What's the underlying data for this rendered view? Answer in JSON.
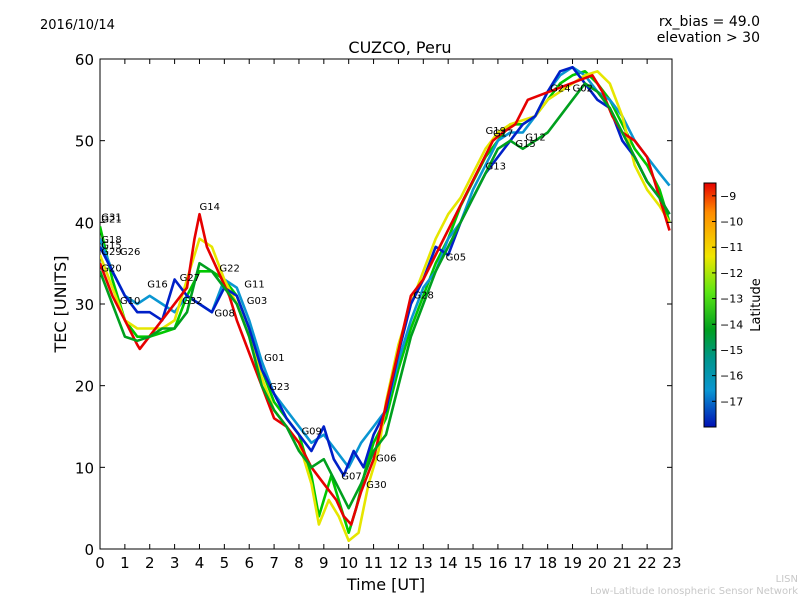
{
  "header": {
    "date": "2016/10/14",
    "bias_line1": "rx_bias = 49.0",
    "bias_line2": "elevation > 30"
  },
  "credit": {
    "line1": "LISN",
    "line2": "Low-Latitude Ionospheric Sensor Network"
  },
  "chart_data": {
    "type": "line",
    "title": "CUZCO, Peru",
    "xlabel": "Time [UT]",
    "ylabel": "TEC [UNITS]",
    "xlim": [
      0,
      23
    ],
    "ylim": [
      0,
      60
    ],
    "xticks": [
      0,
      1,
      2,
      3,
      4,
      5,
      6,
      7,
      8,
      9,
      10,
      11,
      12,
      13,
      14,
      15,
      16,
      17,
      18,
      19,
      20,
      21,
      22,
      23
    ],
    "yticks": [
      0,
      10,
      20,
      30,
      40,
      50,
      60
    ],
    "colorbar": {
      "label": "Latitude",
      "ticks": [
        -9,
        -10,
        -11,
        -12,
        -13,
        -14,
        -15,
        -16,
        -17
      ],
      "range": [
        -18,
        -8.5
      ]
    },
    "satellite_labels": [
      {
        "name": "G31",
        "x": 0.05,
        "y": 40.2
      },
      {
        "name": "G21",
        "x": 0.05,
        "y": 40.0
      },
      {
        "name": "G18",
        "x": 0.05,
        "y": 37.5
      },
      {
        "name": "G15",
        "x": 0.05,
        "y": 36.8
      },
      {
        "name": "G29",
        "x": 0.05,
        "y": 36.0
      },
      {
        "name": "G26",
        "x": 0.8,
        "y": 36.0
      },
      {
        "name": "G20",
        "x": 0.05,
        "y": 34.0
      },
      {
        "name": "G16",
        "x": 1.9,
        "y": 32.0
      },
      {
        "name": "G10",
        "x": 0.8,
        "y": 30.0
      },
      {
        "name": "G14",
        "x": 4.0,
        "y": 41.5
      },
      {
        "name": "G27",
        "x": 3.2,
        "y": 32.8
      },
      {
        "name": "G32",
        "x": 3.3,
        "y": 30.0
      },
      {
        "name": "G22",
        "x": 4.8,
        "y": 34.0
      },
      {
        "name": "G08",
        "x": 4.6,
        "y": 28.5
      },
      {
        "name": "G11",
        "x": 5.8,
        "y": 32.0
      },
      {
        "name": "G03",
        "x": 5.9,
        "y": 30.0
      },
      {
        "name": "G01",
        "x": 6.6,
        "y": 23.0
      },
      {
        "name": "G23",
        "x": 6.8,
        "y": 19.5
      },
      {
        "name": "G09",
        "x": 8.1,
        "y": 14.0
      },
      {
        "name": "G07",
        "x": 9.7,
        "y": 8.5
      },
      {
        "name": "G30",
        "x": 10.7,
        "y": 7.5
      },
      {
        "name": "G06",
        "x": 11.1,
        "y": 10.7
      },
      {
        "name": "G28",
        "x": 12.6,
        "y": 30.7
      },
      {
        "name": "G05",
        "x": 13.9,
        "y": 35.3
      },
      {
        "name": "G13",
        "x": 15.5,
        "y": 46.5
      },
      {
        "name": "G19",
        "x": 15.5,
        "y": 50.8
      },
      {
        "name": "G17",
        "x": 15.8,
        "y": 50.5
      },
      {
        "name": "G15",
        "x": 16.7,
        "y": 49.2
      },
      {
        "name": "G12",
        "x": 17.1,
        "y": 50.0
      },
      {
        "name": "G24",
        "x": 18.1,
        "y": 56.0
      },
      {
        "name": "G02",
        "x": 19.0,
        "y": 56.0
      }
    ],
    "series": [
      {
        "color": "#00c800",
        "points": [
          [
            0,
            39.5
          ],
          [
            0.5,
            33
          ],
          [
            1,
            28
          ],
          [
            1.5,
            26
          ],
          [
            2,
            26
          ],
          [
            2.5,
            26.5
          ],
          [
            3,
            27
          ],
          [
            3.5,
            31
          ],
          [
            4,
            34
          ],
          [
            4.5,
            34
          ],
          [
            5,
            33
          ],
          [
            5.5,
            31
          ],
          [
            6,
            27
          ],
          [
            6.5,
            22
          ],
          [
            7,
            18
          ],
          [
            7.5,
            16
          ],
          [
            8,
            14
          ],
          [
            8.5,
            9
          ],
          [
            8.8,
            4
          ],
          [
            9,
            6
          ],
          [
            9.3,
            9
          ],
          [
            9.7,
            5
          ],
          [
            10,
            2
          ],
          [
            10.3,
            5
          ],
          [
            10.7,
            10
          ],
          [
            11,
            13
          ],
          [
            11.5,
            16
          ],
          [
            12,
            22
          ],
          [
            12.5,
            27
          ],
          [
            13,
            31
          ],
          [
            13.5,
            35
          ],
          [
            14,
            38
          ],
          [
            14.5,
            42
          ],
          [
            15,
            45
          ],
          [
            15.5,
            48
          ],
          [
            16,
            50
          ],
          [
            16.5,
            52
          ],
          [
            17,
            52
          ],
          [
            17.5,
            53
          ],
          [
            18,
            55
          ],
          [
            18.5,
            57
          ],
          [
            19,
            58
          ],
          [
            19.5,
            58.5
          ],
          [
            20,
            57
          ],
          [
            20.5,
            55
          ],
          [
            21,
            52
          ],
          [
            21.5,
            49
          ],
          [
            22,
            47
          ],
          [
            22.5,
            44
          ],
          [
            22.9,
            40
          ]
        ]
      },
      {
        "color": "#0a96d2",
        "points": [
          [
            0,
            38
          ],
          [
            0.5,
            34
          ],
          [
            1,
            31
          ],
          [
            1.5,
            30
          ],
          [
            2,
            31
          ],
          [
            2.5,
            30
          ],
          [
            3,
            29
          ],
          [
            3.5,
            31
          ],
          [
            4,
            30
          ],
          [
            4.5,
            29
          ],
          [
            5,
            33
          ],
          [
            5.5,
            32
          ],
          [
            6,
            28
          ],
          [
            6.5,
            23
          ],
          [
            7,
            19
          ],
          [
            7.5,
            17
          ],
          [
            8,
            15
          ],
          [
            8.5,
            13
          ],
          [
            9,
            14
          ],
          [
            9.5,
            12
          ],
          [
            10,
            10
          ],
          [
            10.5,
            13
          ],
          [
            11,
            15
          ],
          [
            11.5,
            17
          ],
          [
            12,
            23
          ],
          [
            12.5,
            28
          ],
          [
            13,
            32
          ],
          [
            13.5,
            34
          ],
          [
            14,
            38
          ],
          [
            14.5,
            40
          ],
          [
            15,
            44
          ],
          [
            15.5,
            47
          ],
          [
            16,
            50
          ],
          [
            16.5,
            51
          ],
          [
            17,
            51
          ],
          [
            17.5,
            53
          ],
          [
            18,
            56
          ],
          [
            18.5,
            58
          ],
          [
            19,
            59
          ],
          [
            19.5,
            58
          ],
          [
            20,
            56
          ],
          [
            20.5,
            55
          ],
          [
            21,
            53
          ],
          [
            21.5,
            50
          ],
          [
            22,
            48
          ],
          [
            22.5,
            46
          ],
          [
            22.9,
            44.5
          ]
        ]
      },
      {
        "color": "#e6e600",
        "points": [
          [
            0,
            36
          ],
          [
            0.5,
            32
          ],
          [
            1,
            28
          ],
          [
            1.5,
            27
          ],
          [
            2,
            27
          ],
          [
            2.5,
            27
          ],
          [
            3,
            28
          ],
          [
            3.5,
            33
          ],
          [
            4,
            38
          ],
          [
            4.5,
            37
          ],
          [
            5,
            33
          ],
          [
            5.5,
            30
          ],
          [
            6,
            26
          ],
          [
            6.5,
            21
          ],
          [
            7,
            17
          ],
          [
            7.5,
            15
          ],
          [
            8,
            13
          ],
          [
            8.5,
            8
          ],
          [
            8.8,
            3
          ],
          [
            9.2,
            6
          ],
          [
            9.6,
            4
          ],
          [
            10,
            1
          ],
          [
            10.4,
            2
          ],
          [
            10.8,
            8
          ],
          [
            11.2,
            12
          ],
          [
            11.5,
            18
          ],
          [
            12,
            25
          ],
          [
            12.5,
            30
          ],
          [
            13,
            34
          ],
          [
            13.5,
            38
          ],
          [
            14,
            41
          ],
          [
            14.5,
            43
          ],
          [
            15,
            46
          ],
          [
            15.5,
            49
          ],
          [
            16,
            51
          ],
          [
            16.5,
            52
          ],
          [
            17,
            52.5
          ],
          [
            17.5,
            53
          ],
          [
            18,
            55
          ],
          [
            18.5,
            56
          ],
          [
            19,
            57
          ],
          [
            19.5,
            58
          ],
          [
            20,
            58.5
          ],
          [
            20.5,
            57
          ],
          [
            21,
            53
          ],
          [
            21.5,
            47
          ],
          [
            22,
            44
          ],
          [
            22.5,
            42
          ],
          [
            22.9,
            40
          ]
        ]
      },
      {
        "color": "#0020c8",
        "points": [
          [
            0,
            37
          ],
          [
            0.5,
            34
          ],
          [
            1,
            31
          ],
          [
            1.5,
            29
          ],
          [
            2,
            29
          ],
          [
            2.5,
            28
          ],
          [
            3,
            33
          ],
          [
            3.5,
            31
          ],
          [
            4,
            30
          ],
          [
            4.5,
            29
          ],
          [
            5,
            32
          ],
          [
            5.5,
            31
          ],
          [
            6,
            27
          ],
          [
            6.5,
            22
          ],
          [
            7,
            19
          ],
          [
            7.5,
            16
          ],
          [
            8,
            14
          ],
          [
            8.5,
            12
          ],
          [
            9,
            15
          ],
          [
            9.4,
            11
          ],
          [
            9.8,
            9
          ],
          [
            10.2,
            12
          ],
          [
            10.6,
            10
          ],
          [
            11,
            14
          ],
          [
            11.5,
            17
          ],
          [
            12,
            24
          ],
          [
            12.5,
            30
          ],
          [
            13,
            33
          ],
          [
            13.5,
            37
          ],
          [
            14,
            36
          ],
          [
            14.5,
            40
          ],
          [
            15,
            43
          ],
          [
            15.5,
            46
          ],
          [
            16,
            48
          ],
          [
            16.5,
            50
          ],
          [
            17,
            52
          ],
          [
            17.5,
            53
          ],
          [
            18,
            56
          ],
          [
            18.5,
            58.5
          ],
          [
            19,
            59
          ],
          [
            19.5,
            57
          ],
          [
            20,
            55
          ],
          [
            20.5,
            54
          ],
          [
            21,
            50
          ],
          [
            21.5,
            48
          ],
          [
            22,
            45
          ],
          [
            22.5,
            43
          ],
          [
            22.9,
            41
          ]
        ]
      },
      {
        "color": "#e60000",
        "points": [
          [
            0,
            35
          ],
          [
            0.5,
            31
          ],
          [
            1,
            28
          ],
          [
            1.5,
            25
          ],
          [
            1.6,
            24.5
          ],
          [
            3.5,
            32
          ],
          [
            3.8,
            38
          ],
          [
            4,
            41
          ],
          [
            4.3,
            37
          ],
          [
            4.6,
            35
          ],
          [
            5.2,
            31
          ],
          [
            5.5,
            28
          ],
          [
            6,
            24
          ],
          [
            6.5,
            20
          ],
          [
            7,
            16
          ],
          [
            7.5,
            15
          ],
          [
            8,
            13
          ],
          [
            8.5,
            10
          ],
          [
            9,
            8
          ],
          [
            9.5,
            6
          ],
          [
            9.8,
            4
          ],
          [
            10.1,
            3
          ],
          [
            10.5,
            7
          ],
          [
            11,
            11
          ],
          [
            12.5,
            31
          ],
          [
            13,
            33
          ],
          [
            15.8,
            50
          ],
          [
            16.2,
            51
          ],
          [
            16.7,
            52
          ],
          [
            17.2,
            55
          ],
          [
            19.8,
            58
          ],
          [
            20.2,
            56
          ],
          [
            20.6,
            53
          ],
          [
            21,
            51
          ],
          [
            21.5,
            50
          ],
          [
            22,
            48
          ],
          [
            22.5,
            43
          ],
          [
            22.9,
            39
          ]
        ]
      },
      {
        "color": "#00a01e",
        "points": [
          [
            0,
            34
          ],
          [
            0.5,
            30
          ],
          [
            1,
            26
          ],
          [
            1.5,
            25.5
          ],
          [
            2,
            26
          ],
          [
            2.5,
            27
          ],
          [
            3,
            27
          ],
          [
            3.5,
            29
          ],
          [
            4,
            35
          ],
          [
            4.5,
            34
          ],
          [
            5,
            32
          ],
          [
            5.5,
            30
          ],
          [
            6,
            26
          ],
          [
            6.5,
            20
          ],
          [
            7,
            17
          ],
          [
            7.5,
            15
          ],
          [
            8,
            12
          ],
          [
            8.5,
            10
          ],
          [
            9,
            11
          ],
          [
            9.5,
            8
          ],
          [
            10,
            5
          ],
          [
            10.5,
            8
          ],
          [
            11,
            12
          ],
          [
            11.5,
            14
          ],
          [
            12,
            20
          ],
          [
            12.5,
            26
          ],
          [
            13,
            30
          ],
          [
            13.5,
            34
          ],
          [
            14,
            37
          ],
          [
            14.5,
            40
          ],
          [
            15,
            43
          ],
          [
            15.5,
            46
          ],
          [
            16,
            49
          ],
          [
            16.5,
            50
          ],
          [
            17,
            49
          ],
          [
            17.5,
            50
          ],
          [
            18,
            51
          ],
          [
            18.5,
            53
          ],
          [
            19,
            55
          ],
          [
            19.5,
            57
          ],
          [
            20,
            56
          ],
          [
            20.5,
            54
          ],
          [
            21,
            51
          ],
          [
            21.5,
            48
          ],
          [
            22,
            45
          ],
          [
            22.5,
            43
          ],
          [
            22.9,
            41
          ]
        ]
      }
    ]
  }
}
